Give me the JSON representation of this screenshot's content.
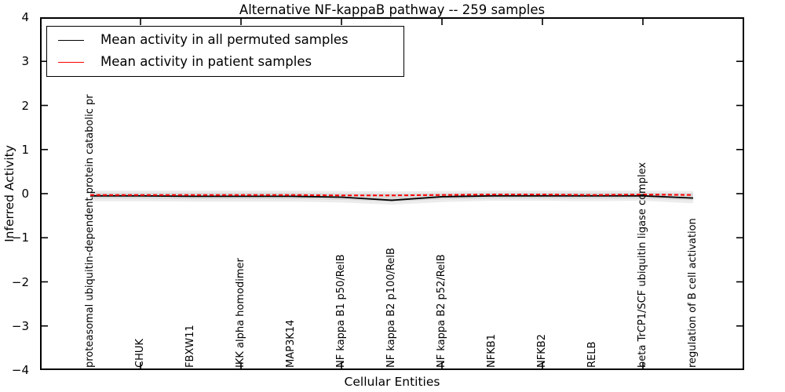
{
  "title": "Alternative NF-kappaB pathway -- 259 samples",
  "legend": {
    "entries": [
      {
        "label": "Mean activity in all permuted samples",
        "color": "#000000",
        "style": "solid"
      },
      {
        "label": "Mean activity in patient samples",
        "color": "#ff0000",
        "style": "dashed"
      }
    ]
  },
  "axes": {
    "ylabel": "Inferred Activity",
    "xlabel": "Cellular Entities",
    "ytick_labels": [
      "4",
      "3",
      "2",
      "1",
      "0",
      "−1",
      "−2",
      "−3",
      "−4"
    ],
    "ytick_values": [
      4,
      3,
      2,
      1,
      0,
      -1,
      -2,
      -3,
      -4
    ],
    "ylim": [
      -4,
      4
    ],
    "grid": false,
    "legend_position": "upper left"
  },
  "chart_data": {
    "type": "line",
    "title": "Alternative NF-kappaB pathway -- 259 samples",
    "xlabel": "Cellular Entities",
    "ylabel": "Inferred Activity",
    "ylim": [
      -4,
      4
    ],
    "categories": [
      "proteasomal ubiquitin-dependent protein catabolic pr",
      "CHUK",
      "FBXW11",
      "IKK alpha homodimer",
      "MAP3K14",
      "NF kappa B1 p50/RelB",
      "NF kappa B2 p100/RelB",
      "NF kappa B2 p52/RelB",
      "NFKB1",
      "NFKB2",
      "RELB",
      "beta TrCP1/SCF ubiquitin ligase complex",
      "regulation of B cell activation"
    ],
    "series": [
      {
        "name": "Mean activity in all permuted samples",
        "color": "#000000",
        "style": "solid",
        "width": 1.8,
        "values": [
          -0.05,
          -0.05,
          -0.06,
          -0.06,
          -0.06,
          -0.08,
          -0.15,
          -0.07,
          -0.05,
          -0.05,
          -0.05,
          -0.05,
          -0.1
        ]
      },
      {
        "name": "Mean activity in patient samples",
        "color": "#ff0000",
        "style": "dashed",
        "width": 2,
        "values": [
          -0.03,
          -0.03,
          -0.03,
          -0.03,
          -0.03,
          -0.04,
          -0.04,
          -0.03,
          -0.02,
          -0.02,
          -0.03,
          -0.02,
          -0.03
        ]
      }
    ],
    "bands": [
      {
        "name": "permuted-activity-outer-band",
        "color": "#ececec",
        "upper": [
          0.07,
          0.07,
          0.07,
          0.07,
          0.07,
          0.06,
          0.05,
          0.06,
          0.07,
          0.07,
          0.07,
          0.07,
          0.06
        ],
        "lower": [
          -0.17,
          -0.17,
          -0.18,
          -0.18,
          -0.18,
          -0.2,
          -0.25,
          -0.19,
          -0.16,
          -0.16,
          -0.17,
          -0.16,
          -0.22
        ]
      },
      {
        "name": "permuted-activity-inner-band",
        "color": "#d9d9d9",
        "upper": [
          0.02,
          0.02,
          0.02,
          0.02,
          0.02,
          0.01,
          0.0,
          0.01,
          0.02,
          0.02,
          0.02,
          0.02,
          0.01
        ],
        "lower": [
          -0.11,
          -0.11,
          -0.12,
          -0.12,
          -0.12,
          -0.14,
          -0.18,
          -0.13,
          -0.11,
          -0.11,
          -0.11,
          -0.11,
          -0.15
        ]
      }
    ],
    "x_tick_indices": [
      1,
      3,
      5,
      7,
      9,
      11
    ]
  }
}
